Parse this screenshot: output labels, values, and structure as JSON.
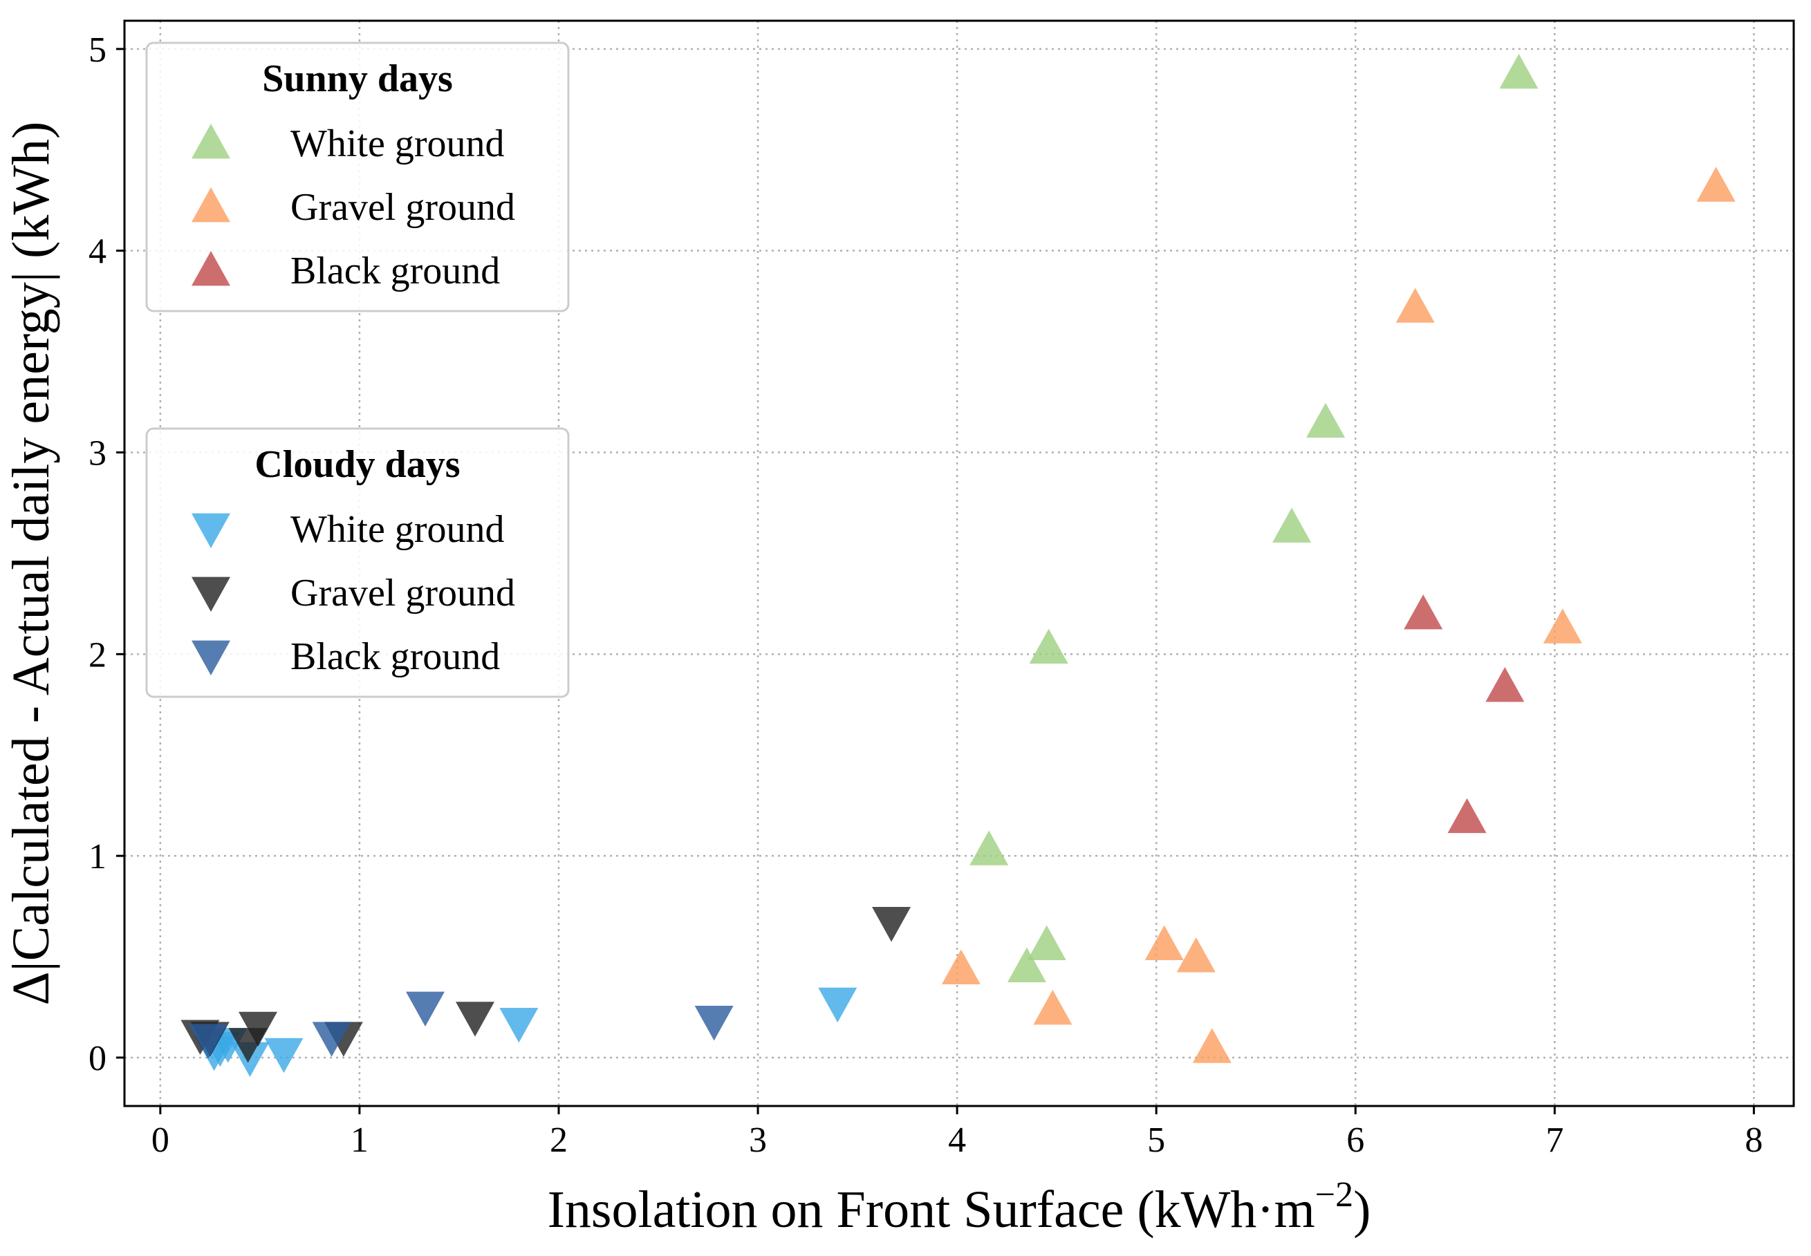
{
  "chart_data": {
    "type": "scatter",
    "xlabel": "Insolation on Front Surface (kWh·m",
    "xlabel_sup": "−2",
    "xlabel_close": ")",
    "ylabel": "Δ|Calculated - Actual daily energy| (kWh)",
    "xlim": [
      -0.18,
      8.2
    ],
    "ylim": [
      -0.24,
      5.14
    ],
    "xticks": [
      0,
      1,
      2,
      3,
      4,
      5,
      6,
      7,
      8
    ],
    "yticks": [
      0,
      1,
      2,
      3,
      4,
      5
    ],
    "grid": true,
    "legends": [
      {
        "title": "Sunny days",
        "placement": "upper-left",
        "entries": [
          {
            "label": "White ground",
            "series": 0
          },
          {
            "label": "Gravel ground",
            "series": 1
          },
          {
            "label": "Black ground",
            "series": 2
          }
        ]
      },
      {
        "title": "Cloudy days",
        "placement": "center-left",
        "entries": [
          {
            "label": "White ground",
            "series": 3
          },
          {
            "label": "Gravel ground",
            "series": 4
          },
          {
            "label": "Black ground",
            "series": 5
          }
        ]
      }
    ],
    "series": [
      {
        "name": "Sunny days - White ground",
        "marker": "triangle-up",
        "color": "#9ecf7f",
        "points": [
          [
            6.82,
            4.88
          ],
          [
            5.85,
            3.15
          ],
          [
            5.68,
            2.63
          ],
          [
            4.46,
            2.03
          ],
          [
            4.16,
            1.03
          ],
          [
            4.45,
            0.56
          ],
          [
            4.35,
            0.45
          ]
        ]
      },
      {
        "name": "Sunny days - Gravel ground",
        "marker": "triangle-up",
        "color": "#fb9d5f",
        "points": [
          [
            7.81,
            4.32
          ],
          [
            6.3,
            3.72
          ],
          [
            7.04,
            2.13
          ],
          [
            5.04,
            0.56
          ],
          [
            5.2,
            0.5
          ],
          [
            4.02,
            0.44
          ],
          [
            4.48,
            0.24
          ],
          [
            5.28,
            0.05
          ]
        ]
      },
      {
        "name": "Sunny days - Black ground",
        "marker": "triangle-up",
        "color": "#c04a4a",
        "points": [
          [
            6.34,
            2.2
          ],
          [
            6.75,
            1.84
          ],
          [
            6.56,
            1.19
          ]
        ]
      },
      {
        "name": "Cloudy days - White ground",
        "marker": "triangle-down",
        "color": "#3aa9e6",
        "points": [
          [
            3.4,
            0.27
          ],
          [
            1.8,
            0.17
          ],
          [
            0.62,
            0.02
          ],
          [
            0.45,
            0.0
          ],
          [
            0.3,
            0.05
          ],
          [
            0.27,
            0.03
          ],
          [
            0.34,
            0.07
          ]
        ]
      },
      {
        "name": "Cloudy days - Gravel ground",
        "marker": "triangle-down",
        "color": "#222222",
        "points": [
          [
            3.67,
            0.67
          ],
          [
            1.58,
            0.2
          ],
          [
            0.49,
            0.15
          ],
          [
            0.92,
            0.1
          ],
          [
            0.2,
            0.11
          ],
          [
            0.25,
            0.1
          ],
          [
            0.44,
            0.07
          ]
        ]
      },
      {
        "name": "Cloudy days - Black ground",
        "marker": "triangle-down",
        "color": "#2b5c9e",
        "points": [
          [
            1.33,
            0.25
          ],
          [
            2.78,
            0.18
          ],
          [
            0.86,
            0.1
          ],
          [
            0.24,
            0.09
          ]
        ]
      }
    ]
  }
}
